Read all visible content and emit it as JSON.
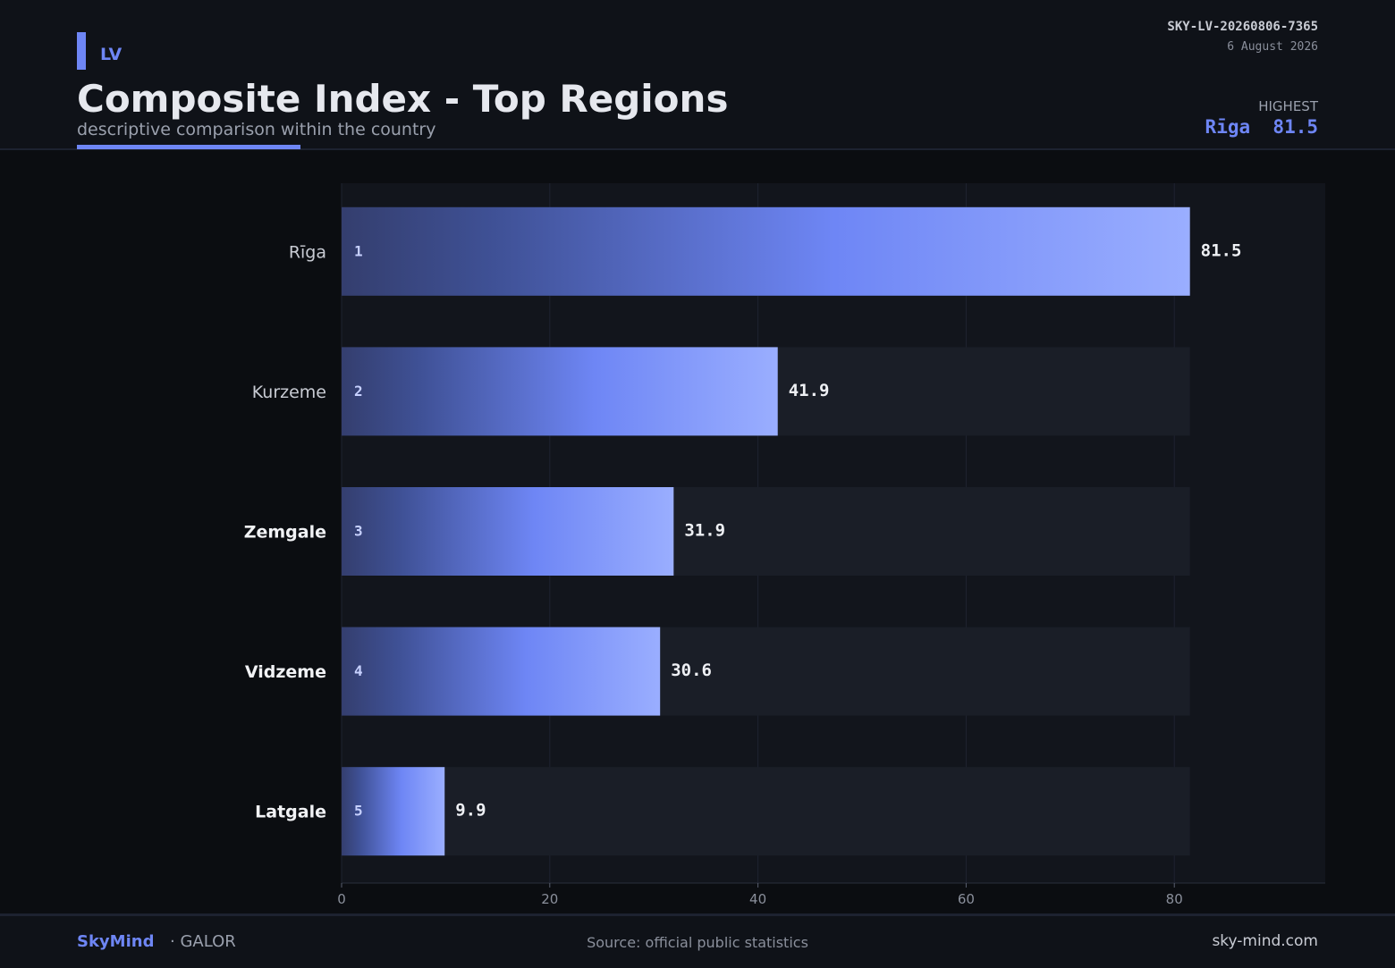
{
  "header": {
    "country_code": "LV",
    "title": "Composite Index - Top Regions",
    "subtitle": "descriptive comparison within the country",
    "report_id": "SKY-LV-20260806-7365",
    "report_date": "6 August 2026",
    "highest_label": "HIGHEST",
    "highest_region": "Rīga",
    "highest_value": "81.5"
  },
  "footer": {
    "brand": "SkyMind",
    "brand_sub": "· GALOR",
    "source": "Source: official public statistics",
    "site": "sky-mind.com"
  },
  "colors": {
    "accent": "#6e86f5",
    "bar_start": "#343e6e",
    "bar_light": "#9aaeff",
    "track": "#1a1e27",
    "plot_bg": "#12151c"
  },
  "chart_data": {
    "type": "bar",
    "orientation": "horizontal",
    "categories": [
      "Rīga",
      "Kurzeme",
      "Zemgale",
      "Vidzeme",
      "Latgale"
    ],
    "ranks": [
      "1",
      "2",
      "3",
      "4",
      "5"
    ],
    "values": [
      81.5,
      41.9,
      31.9,
      30.6,
      9.9
    ],
    "value_labels": [
      "81.5",
      "41.9",
      "31.9",
      "30.6",
      "9.9"
    ],
    "xlim": [
      0,
      94.5
    ],
    "xticks": [
      0,
      20,
      40,
      60,
      80
    ],
    "xtick_labels": [
      "0",
      "20",
      "40",
      "60",
      "80"
    ],
    "grid": true
  }
}
